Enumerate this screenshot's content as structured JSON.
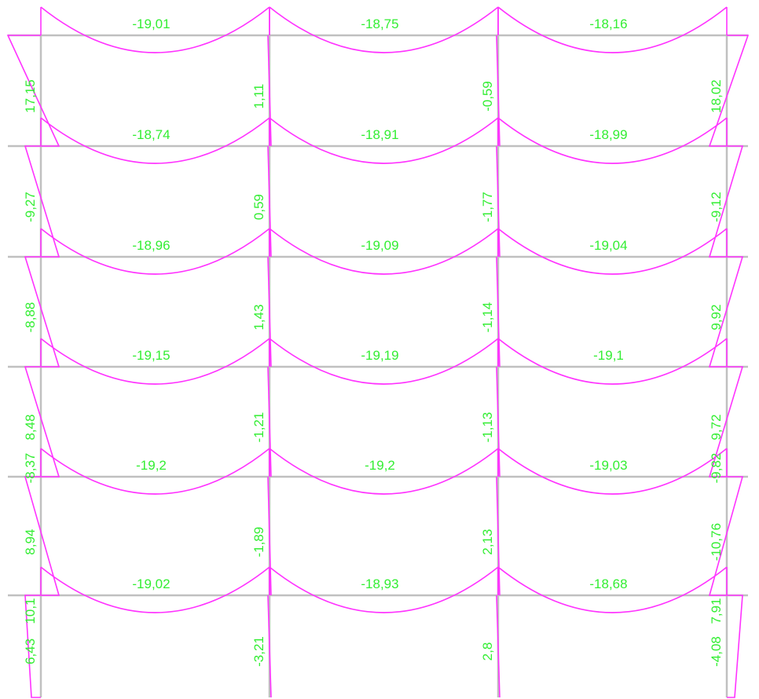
{
  "diagram": {
    "type": "frame-bending-moment",
    "colors": {
      "members": "#c0c0c0",
      "moment_curve": "#ff33ff",
      "labels": "#33ee33"
    },
    "beams": [
      {
        "story": 6,
        "bay": 1,
        "value": "-19,01"
      },
      {
        "story": 6,
        "bay": 2,
        "value": "-18,75"
      },
      {
        "story": 6,
        "bay": 3,
        "value": "-18,16"
      },
      {
        "story": 5,
        "bay": 1,
        "value": "-18,74"
      },
      {
        "story": 5,
        "bay": 2,
        "value": "-18,91"
      },
      {
        "story": 5,
        "bay": 3,
        "value": "-18,99"
      },
      {
        "story": 4,
        "bay": 1,
        "value": "-18,96"
      },
      {
        "story": 4,
        "bay": 2,
        "value": "-19,09"
      },
      {
        "story": 4,
        "bay": 3,
        "value": "-19,04"
      },
      {
        "story": 3,
        "bay": 1,
        "value": "-19,15"
      },
      {
        "story": 3,
        "bay": 2,
        "value": "-19,19"
      },
      {
        "story": 3,
        "bay": 3,
        "value": "-19,1"
      },
      {
        "story": 2,
        "bay": 1,
        "value": "-19,2"
      },
      {
        "story": 2,
        "bay": 2,
        "value": "-19,2"
      },
      {
        "story": 2,
        "bay": 3,
        "value": "-19,03"
      },
      {
        "story": 1,
        "bay": 1,
        "value": "-19,02"
      },
      {
        "story": 1,
        "bay": 2,
        "value": "-18,93"
      },
      {
        "story": 1,
        "bay": 3,
        "value": "-18,68"
      }
    ],
    "columns": [
      {
        "story": 6,
        "line": 1,
        "value": "17,15"
      },
      {
        "story": 6,
        "line": 2,
        "value": "1,11"
      },
      {
        "story": 6,
        "line": 3,
        "value": "-0,59"
      },
      {
        "story": 6,
        "line": 4,
        "value": "18,02"
      },
      {
        "story": 5,
        "line": 1,
        "value": "-9,27"
      },
      {
        "story": 5,
        "line": 2,
        "value": "0,59"
      },
      {
        "story": 5,
        "line": 3,
        "value": "-1,77"
      },
      {
        "story": 5,
        "line": 4,
        "value": "-9,12"
      },
      {
        "story": 4,
        "line": 1,
        "value": "-8,88"
      },
      {
        "story": 4,
        "line": 2,
        "value": "1,43"
      },
      {
        "story": 4,
        "line": 3,
        "value": "-1,14"
      },
      {
        "story": 4,
        "line": 4,
        "value": "9,92"
      },
      {
        "story": 3,
        "line": 1,
        "value": "8,48"
      },
      {
        "story": 3,
        "line": 2,
        "value": "-1,21"
      },
      {
        "story": 3,
        "line": 3,
        "value": "-1,13"
      },
      {
        "story": 3,
        "line": 4,
        "value": "9,72"
      },
      {
        "story": 2,
        "line": 1,
        "value": "8,94"
      },
      {
        "story": 2,
        "line": 2,
        "value": "-1,89"
      },
      {
        "story": 2,
        "line": 3,
        "value": "2,13"
      },
      {
        "story": 2,
        "line": 4,
        "value": "-10,76"
      },
      {
        "story": 1,
        "line": 1,
        "value": "6,43"
      },
      {
        "story": 1,
        "line": 2,
        "value": "-3,21"
      },
      {
        "story": 1,
        "line": 3,
        "value": "2,8"
      },
      {
        "story": 1,
        "line": 4,
        "value": "-4,08"
      }
    ],
    "extra_labels": [
      {
        "value": "-8,37"
      },
      {
        "value": "10,1"
      },
      {
        "value": "7,91"
      },
      {
        "value": "-9,82"
      }
    ]
  }
}
